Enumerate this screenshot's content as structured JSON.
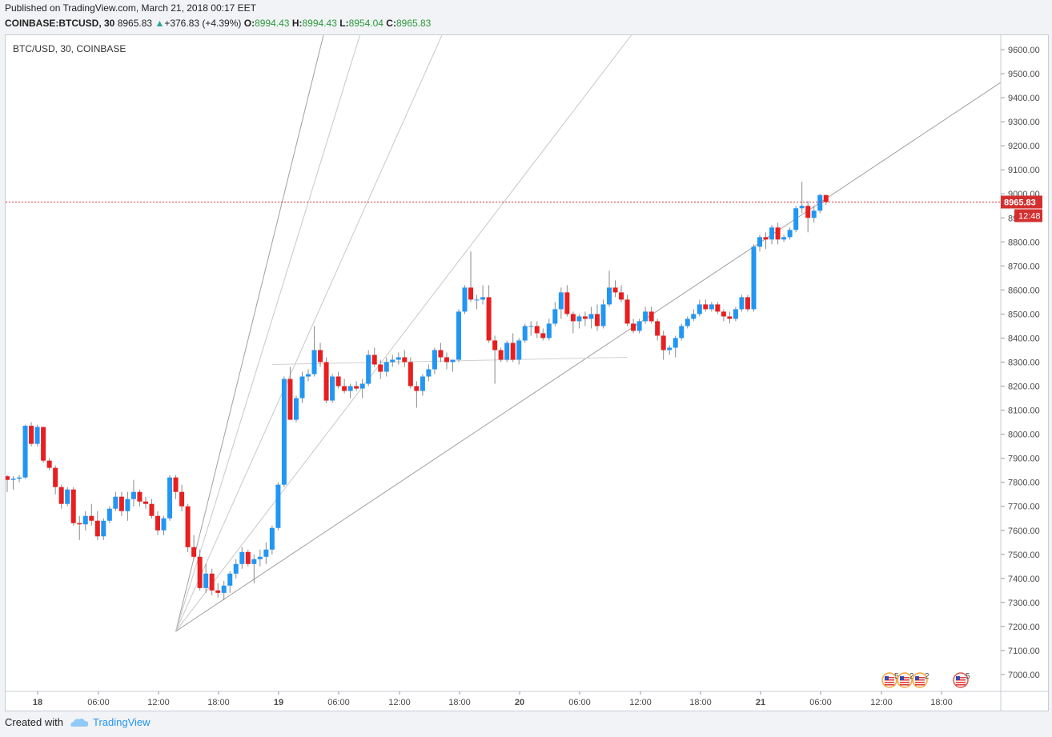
{
  "header": {
    "published": "Published on TradingView.com, March 21, 2018 00:17 EET",
    "symbol": "COINBASE:BTCUSD, 30",
    "last": "8965.83",
    "change": "+376.83 (+4.39%)",
    "o_label": "O:",
    "o": "8994.43",
    "h_label": "H:",
    "h": "8994.43",
    "l_label": "L:",
    "l": "8954.04",
    "c_label": "C:",
    "c": "8965.83"
  },
  "footer": {
    "created_with": "Created with",
    "brand": "TradingView"
  },
  "colors": {
    "up": "#2196f3",
    "down": "#e91e1e",
    "price_line": "#d32f2f",
    "fan": "#9e9e9e"
  },
  "chart_data": {
    "type": "candlestick",
    "title": "BTC/USD, 30, COINBASE",
    "ylim": [
      6930,
      9660
    ],
    "y_ticks": [
      7000,
      7100,
      7200,
      7300,
      7400,
      7500,
      7600,
      7700,
      7800,
      7900,
      8000,
      8100,
      8200,
      8300,
      8400,
      8500,
      8600,
      8700,
      8800,
      8900,
      9000,
      9100,
      9200,
      9300,
      9400,
      9500,
      9600
    ],
    "x_ticks": [
      "18",
      "06:00",
      "12:00",
      "18:00",
      "19",
      "06:00",
      "12:00",
      "18:00",
      "20",
      "06:00",
      "12:00",
      "18:00",
      "21",
      "06:00",
      "12:00",
      "18:00"
    ],
    "last_price_label": "8965.83",
    "countdown_label": "12:48",
    "event_badges": [
      "5",
      "2",
      "2",
      "5"
    ],
    "series": [
      {
        "values": [
          [
            7825,
            7830,
            7760,
            7810
          ],
          [
            7810,
            7825,
            7770,
            7815
          ],
          [
            7815,
            7830,
            7800,
            7820
          ],
          [
            7820,
            8040,
            7815,
            8035
          ],
          [
            8035,
            8050,
            7950,
            7960
          ],
          [
            7960,
            8040,
            7950,
            8030
          ],
          [
            8030,
            8030,
            7880,
            7890
          ],
          [
            7890,
            7900,
            7850,
            7860
          ],
          [
            7860,
            7870,
            7750,
            7780
          ],
          [
            7780,
            7790,
            7690,
            7710
          ],
          [
            7710,
            7780,
            7700,
            7770
          ],
          [
            7770,
            7780,
            7620,
            7630
          ],
          [
            7630,
            7660,
            7560,
            7625
          ],
          [
            7625,
            7680,
            7600,
            7660
          ],
          [
            7660,
            7710,
            7620,
            7640
          ],
          [
            7640,
            7680,
            7560,
            7575
          ],
          [
            7575,
            7650,
            7560,
            7640
          ],
          [
            7640,
            7700,
            7630,
            7690
          ],
          [
            7690,
            7760,
            7680,
            7740
          ],
          [
            7740,
            7760,
            7660,
            7680
          ],
          [
            7680,
            7760,
            7640,
            7730
          ],
          [
            7730,
            7810,
            7700,
            7760
          ],
          [
            7760,
            7770,
            7700,
            7720
          ],
          [
            7720,
            7740,
            7690,
            7710
          ],
          [
            7710,
            7730,
            7650,
            7660
          ],
          [
            7660,
            7680,
            7580,
            7600
          ],
          [
            7600,
            7660,
            7580,
            7650
          ],
          [
            7650,
            7830,
            7640,
            7820
          ],
          [
            7820,
            7830,
            7730,
            7760
          ],
          [
            7760,
            7790,
            7680,
            7700
          ],
          [
            7700,
            7710,
            7510,
            7530
          ],
          [
            7530,
            7580,
            7480,
            7490
          ],
          [
            7490,
            7520,
            7350,
            7360
          ],
          [
            7360,
            7460,
            7340,
            7420
          ],
          [
            7420,
            7440,
            7330,
            7350
          ],
          [
            7350,
            7380,
            7320,
            7340
          ],
          [
            7340,
            7390,
            7310,
            7370
          ],
          [
            7370,
            7430,
            7340,
            7420
          ],
          [
            7420,
            7480,
            7400,
            7460
          ],
          [
            7460,
            7530,
            7440,
            7510
          ],
          [
            7510,
            7520,
            7450,
            7460
          ],
          [
            7460,
            7500,
            7380,
            7480
          ],
          [
            7480,
            7520,
            7450,
            7490
          ],
          [
            7490,
            7550,
            7460,
            7520
          ],
          [
            7520,
            7620,
            7500,
            7610
          ],
          [
            7610,
            7800,
            7600,
            7790
          ],
          [
            7790,
            8240,
            7780,
            8230
          ],
          [
            8230,
            8280,
            8060,
            8060
          ],
          [
            8060,
            8160,
            8050,
            8150
          ],
          [
            8150,
            8260,
            8130,
            8240
          ],
          [
            8240,
            8270,
            8220,
            8250
          ],
          [
            8250,
            8450,
            8240,
            8350
          ],
          [
            8350,
            8380,
            8280,
            8300
          ],
          [
            8300,
            8320,
            8130,
            8140
          ],
          [
            8140,
            8250,
            8130,
            8240
          ],
          [
            8240,
            8260,
            8190,
            8200
          ],
          [
            8200,
            8230,
            8170,
            8180
          ],
          [
            8180,
            8210,
            8150,
            8200
          ],
          [
            8200,
            8220,
            8180,
            8190
          ],
          [
            8190,
            8230,
            8150,
            8210
          ],
          [
            8210,
            8350,
            8200,
            8330
          ],
          [
            8330,
            8360,
            8280,
            8290
          ],
          [
            8290,
            8310,
            8230,
            8260
          ],
          [
            8260,
            8320,
            8240,
            8300
          ],
          [
            8300,
            8330,
            8280,
            8310
          ],
          [
            8310,
            8340,
            8290,
            8320
          ],
          [
            8320,
            8350,
            8280,
            8300
          ],
          [
            8300,
            8320,
            8190,
            8200
          ],
          [
            8200,
            8220,
            8110,
            8180
          ],
          [
            8180,
            8250,
            8160,
            8240
          ],
          [
            8240,
            8290,
            8220,
            8270
          ],
          [
            8270,
            8360,
            8250,
            8350
          ],
          [
            8350,
            8380,
            8300,
            8320
          ],
          [
            8320,
            8340,
            8270,
            8300
          ],
          [
            8300,
            8310,
            8260,
            8310
          ],
          [
            8310,
            8520,
            8300,
            8510
          ],
          [
            8510,
            8620,
            8500,
            8610
          ],
          [
            8610,
            8760,
            8550,
            8560
          ],
          [
            8560,
            8580,
            8520,
            8560
          ],
          [
            8560,
            8620,
            8540,
            8570
          ],
          [
            8570,
            8620,
            8380,
            8390
          ],
          [
            8390,
            8410,
            8210,
            8350
          ],
          [
            8350,
            8360,
            8300,
            8310
          ],
          [
            8310,
            8390,
            8300,
            8380
          ],
          [
            8380,
            8420,
            8300,
            8310
          ],
          [
            8310,
            8400,
            8290,
            8390
          ],
          [
            8390,
            8460,
            8380,
            8450
          ],
          [
            8450,
            8470,
            8410,
            8450
          ],
          [
            8450,
            8470,
            8400,
            8420
          ],
          [
            8420,
            8440,
            8390,
            8400
          ],
          [
            8400,
            8480,
            8390,
            8460
          ],
          [
            8460,
            8550,
            8450,
            8520
          ],
          [
            8520,
            8610,
            8480,
            8590
          ],
          [
            8590,
            8620,
            8490,
            8500
          ],
          [
            8500,
            8510,
            8420,
            8470
          ],
          [
            8470,
            8500,
            8440,
            8490
          ],
          [
            8490,
            8510,
            8450,
            8480
          ],
          [
            8480,
            8530,
            8440,
            8500
          ],
          [
            8500,
            8540,
            8430,
            8450
          ],
          [
            8450,
            8560,
            8440,
            8540
          ],
          [
            8540,
            8680,
            8530,
            8610
          ],
          [
            8610,
            8640,
            8570,
            8590
          ],
          [
            8590,
            8620,
            8550,
            8560
          ],
          [
            8560,
            8580,
            8450,
            8460
          ],
          [
            8460,
            8480,
            8420,
            8430
          ],
          [
            8430,
            8480,
            8420,
            8470
          ],
          [
            8470,
            8530,
            8460,
            8510
          ],
          [
            8510,
            8530,
            8460,
            8470
          ],
          [
            8470,
            8480,
            8390,
            8410
          ],
          [
            8410,
            8430,
            8310,
            8350
          ],
          [
            8350,
            8370,
            8330,
            8360
          ],
          [
            8360,
            8410,
            8320,
            8400
          ],
          [
            8400,
            8460,
            8390,
            8450
          ],
          [
            8450,
            8490,
            8440,
            8480
          ],
          [
            8480,
            8520,
            8470,
            8500
          ],
          [
            8500,
            8560,
            8490,
            8540
          ],
          [
            8540,
            8560,
            8510,
            8520
          ],
          [
            8520,
            8550,
            8510,
            8540
          ],
          [
            8540,
            8550,
            8500,
            8510
          ],
          [
            8510,
            8520,
            8470,
            8490
          ],
          [
            8490,
            8510,
            8460,
            8480
          ],
          [
            8480,
            8530,
            8470,
            8520
          ],
          [
            8520,
            8580,
            8510,
            8570
          ],
          [
            8570,
            8580,
            8510,
            8520
          ],
          [
            8520,
            8790,
            8510,
            8780
          ],
          [
            8780,
            8830,
            8760,
            8820
          ],
          [
            8820,
            8840,
            8770,
            8810
          ],
          [
            8810,
            8870,
            8790,
            8860
          ],
          [
            8860,
            8880,
            8790,
            8810
          ],
          [
            8810,
            8830,
            8800,
            8820
          ],
          [
            8820,
            8860,
            8810,
            8850
          ],
          [
            8850,
            8950,
            8840,
            8940
          ],
          [
            8940,
            9050,
            8920,
            8950
          ],
          [
            8950,
            8970,
            8840,
            8900
          ],
          [
            8900,
            8950,
            8880,
            8930
          ],
          [
            8930,
            9000,
            8920,
            8995
          ],
          [
            8995,
            8995,
            8954,
            8966
          ]
        ]
      }
    ],
    "fan": {
      "origin_price": 7180,
      "through_prices": [
        9000,
        8640,
        8190,
        7770,
        7480
      ]
    }
  }
}
